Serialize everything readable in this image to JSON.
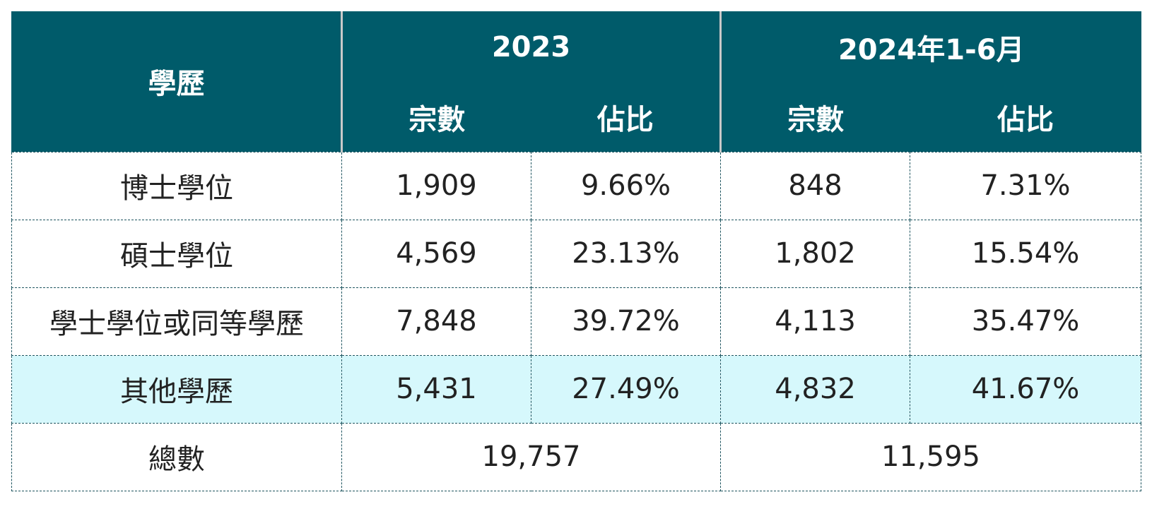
{
  "header": {
    "education_label": "學歷",
    "year_2023": "2023",
    "year_2024": "2024年1-6月",
    "count_label": "宗數",
    "share_label": "佔比"
  },
  "rows": [
    {
      "label": "博士學位",
      "count_2023": "1,909",
      "share_2023": "9.66%",
      "count_2024": "848",
      "share_2024": "7.31%"
    },
    {
      "label": "碩士學位",
      "count_2023": "4,569",
      "share_2023": "23.13%",
      "count_2024": "1,802",
      "share_2024": "15.54%"
    },
    {
      "label": "學士學位或同等學歷",
      "count_2023": "7,848",
      "share_2023": "39.72%",
      "count_2024": "4,113",
      "share_2024": "35.47%"
    },
    {
      "label": "其他學歷",
      "count_2023": "5,431",
      "share_2023": "27.49%",
      "count_2024": "4,832",
      "share_2024": "41.67%"
    }
  ],
  "total": {
    "label": "總數",
    "value_2023": "19,757",
    "value_2024": "11,595"
  },
  "colors": {
    "header_bg": "#005b6a",
    "header_text": "#ffffff",
    "highlight_row_bg": "#d6f8fc",
    "border": "#1f5560"
  }
}
